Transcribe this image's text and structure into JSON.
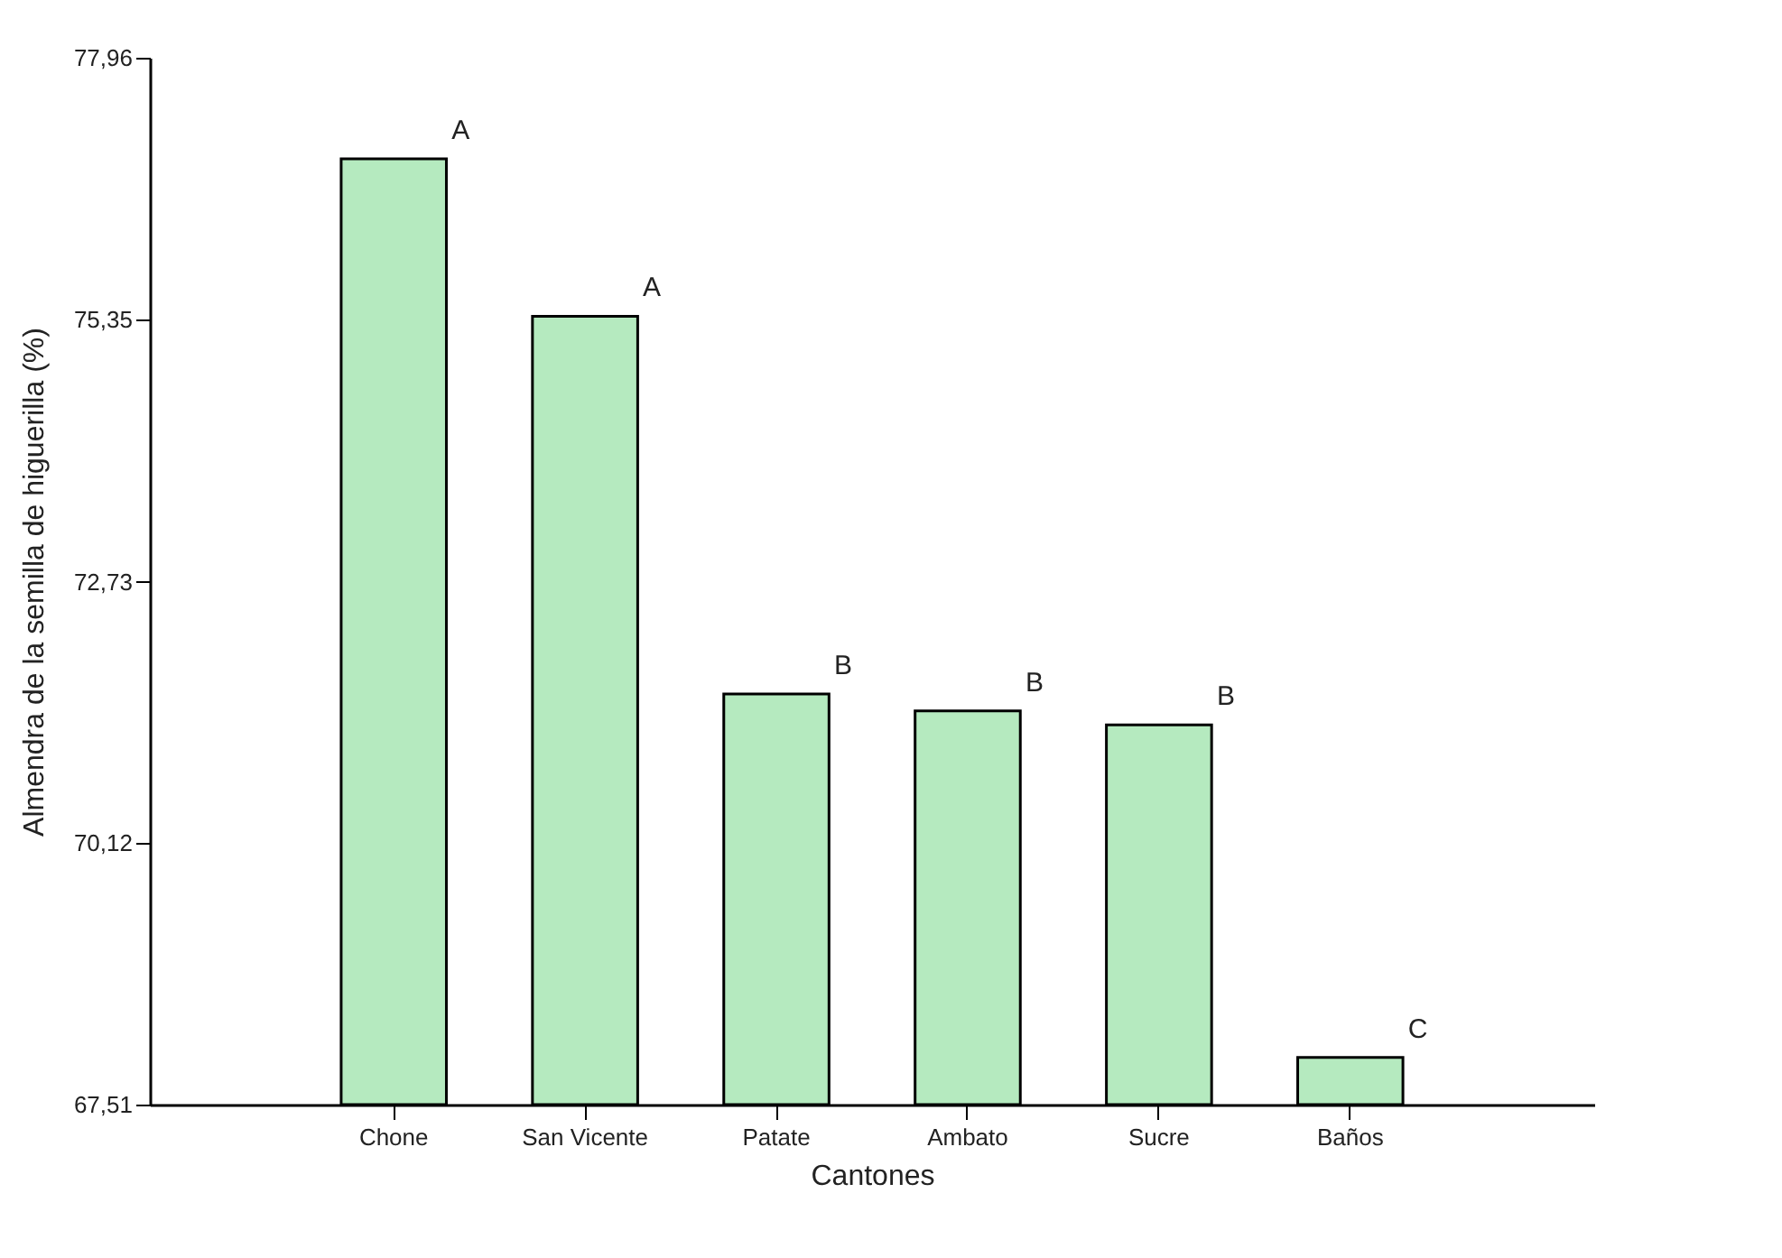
{
  "chart_data": {
    "type": "bar",
    "xlabel": "Cantones",
    "ylabel": "Almendra de la semilla de higuerilla (%)",
    "categories": [
      "Chone",
      "San Vicente",
      "Patate",
      "Ambato",
      "Sucre",
      "Baños"
    ],
    "values": [
      76.95,
      75.38,
      71.61,
      71.44,
      71.3,
      67.98
    ],
    "color": "#b5eabf",
    "ylim": [
      67.51,
      77.96
    ],
    "yticks": [
      {
        "value": 67.51,
        "label": "67,51"
      },
      {
        "value": 70.12,
        "label": "70,12"
      },
      {
        "value": 72.73,
        "label": "72,73"
      },
      {
        "value": 75.35,
        "label": "75,35"
      },
      {
        "value": 77.96,
        "label": "77,96"
      }
    ],
    "grid": false,
    "annotations": [
      {
        "text": "A",
        "x": "Chone",
        "y": 76.95
      },
      {
        "text": "A",
        "x": "San Vicente",
        "y": 75.38
      },
      {
        "text": "B",
        "x": "Patate",
        "y": 71.61
      },
      {
        "text": "B",
        "x": "Ambato",
        "y": 71.44
      },
      {
        "text": "B",
        "x": "Sucre",
        "y": 71.3
      },
      {
        "text": "C",
        "x": "Baños",
        "y": 67.98
      }
    ]
  }
}
